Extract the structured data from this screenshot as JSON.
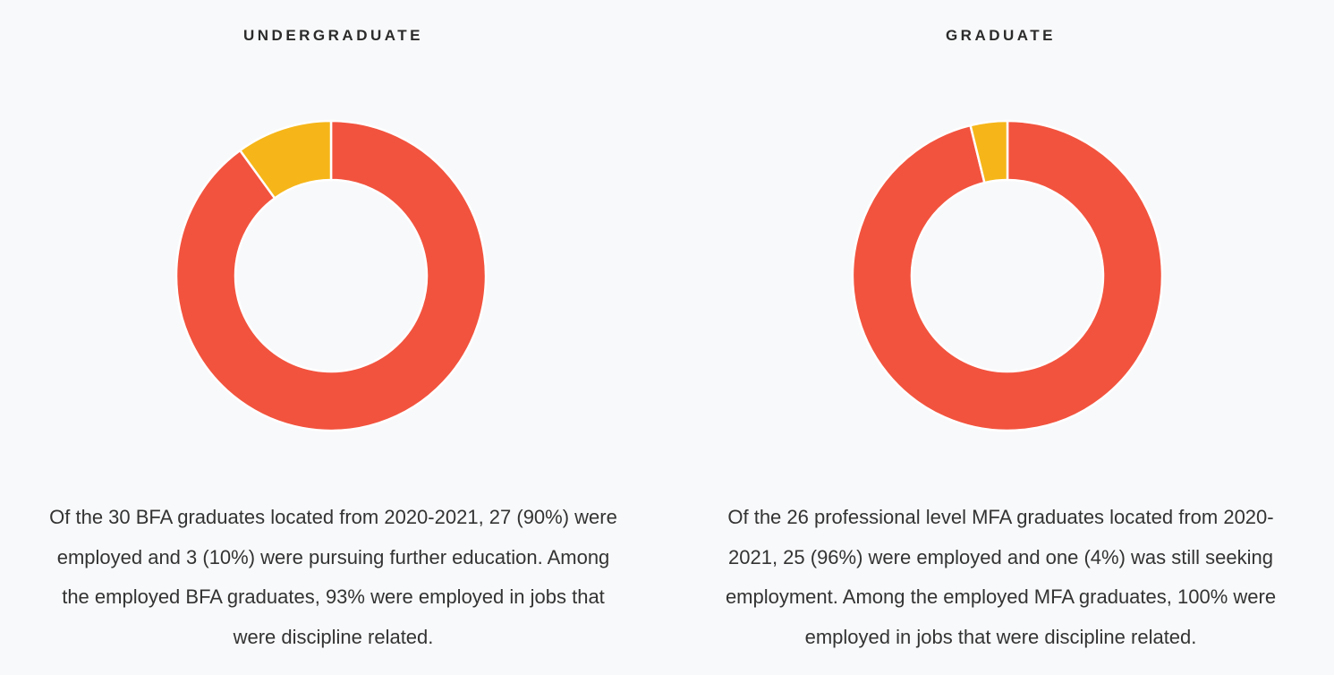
{
  "chart_data": [
    {
      "type": "pie",
      "title": "UNDERGRADUATE",
      "categories": [
        "Employed",
        "Pursuing further education"
      ],
      "values": [
        27,
        3
      ],
      "percentages": [
        90,
        10
      ],
      "colors": [
        "#f2533e",
        "#f6b619"
      ],
      "description_lines": [
        "Of the 30 BFA graduates located from 2020-2021, 27 (90%) were",
        "employed and 3 (10%) were pursuing further education. Among",
        "the employed BFA graduates, 93% were employed in jobs that",
        "were discipline related."
      ]
    },
    {
      "type": "pie",
      "title": "GRADUATE",
      "categories": [
        "Employed",
        "Seeking employment"
      ],
      "values": [
        25,
        1
      ],
      "percentages": [
        96,
        4
      ],
      "colors": [
        "#f2533e",
        "#f6b619"
      ],
      "description_lines": [
        "Of the 26 professional level MFA graduates located from 2020-",
        "2021, 25 (96%) were employed and one (4%) was still seeking",
        "employment. Among the employed MFA graduates, 100% were",
        "employed in jobs that were discipline related."
      ]
    }
  ]
}
